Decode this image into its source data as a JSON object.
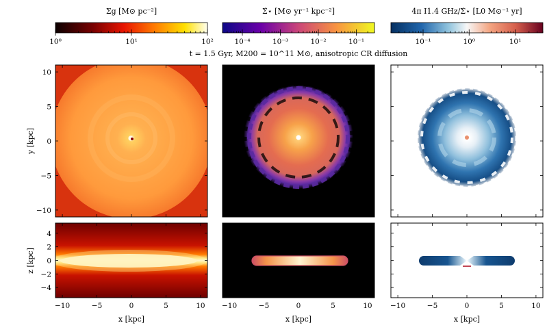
{
  "chart_data": {
    "type": "heatmap",
    "subtitle": "t = 1.5 Gyr, M200 = 10^11 M⊙, anisotropic CR diffusion",
    "colorbars": [
      {
        "label": "Σg [M⊙ pc⁻²]",
        "scale": "log",
        "range": [
          1,
          100
        ],
        "ticks": [
          "10⁰",
          "10¹",
          "10²"
        ],
        "tick_values": [
          1,
          10,
          100
        ],
        "colormap": "hot"
      },
      {
        "label": "Σ̇⋆ [M⊙ yr⁻¹ kpc⁻²]",
        "scale": "log",
        "range": [
          3e-05,
          0.3
        ],
        "ticks": [
          "10⁻⁴",
          "10⁻³",
          "10⁻²",
          "10⁻¹"
        ],
        "tick_values": [
          0.0001,
          0.001,
          0.01,
          0.1
        ],
        "colormap": "plasma"
      },
      {
        "label": "4π I1.4 GHz/Σ̇⋆ [L0 M⊙⁻¹ yr]",
        "scale": "log",
        "range": [
          0.02,
          40
        ],
        "ticks": [
          "10⁻¹",
          "10⁰",
          "10¹"
        ],
        "tick_values": [
          0.1,
          1,
          10
        ],
        "colormap": "RdBu_r"
      }
    ],
    "columns": [
      "Σg",
      "Σ̇⋆",
      "4π I1.4 GHz/Σ̇⋆"
    ],
    "rows": [
      {
        "name": "face-on",
        "xlabel": "x [kpc]",
        "ylabel": "y [kpc]",
        "xlim": [
          -11,
          11
        ],
        "ylim": [
          -11,
          11
        ],
        "yticks": [
          -10,
          -5,
          0,
          5,
          10
        ],
        "yticklabels": [
          "−10",
          "−5",
          "0",
          "5",
          "10"
        ]
      },
      {
        "name": "edge-on",
        "xlabel": "x [kpc]",
        "ylabel": "z [kpc]",
        "xlim": [
          -11,
          11
        ],
        "ylim": [
          -5.5,
          5.5
        ],
        "yticks": [
          -4,
          -2,
          0,
          2,
          4
        ],
        "yticklabels": [
          "−4",
          "−2",
          "0",
          "2",
          "4"
        ]
      }
    ],
    "xticks": [
      -10,
      -5,
      0,
      5,
      10
    ],
    "xticklabels": [
      "−10",
      "−5",
      "0",
      "5",
      "10"
    ],
    "xlabel": "x [kpc]"
  }
}
